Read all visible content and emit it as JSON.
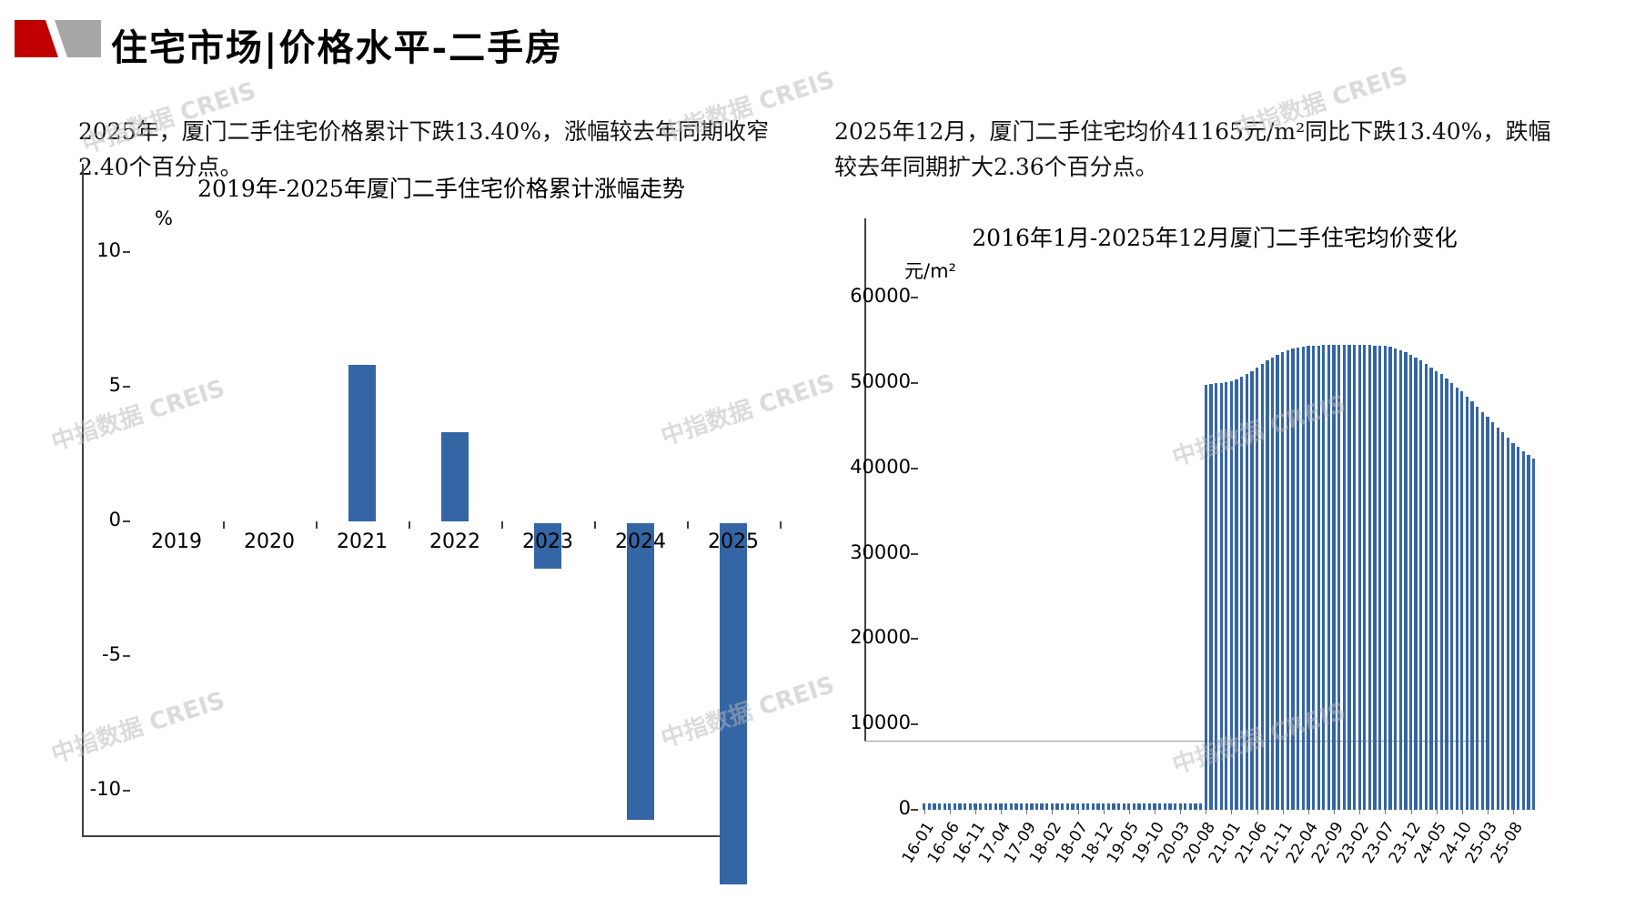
{
  "header": {
    "title": "住宅市场|价格水平-二手房"
  },
  "watermark": {
    "text": "中指数据 CREIS"
  },
  "commentary": {
    "left": "2025年，厦门二手住宅价格累计下跌13.40%，涨幅较去年同期收窄2.40个百分点。",
    "right": "2025年12月，厦门二手住宅均价41165元/m²同比下跌13.40%，跌幅较去年同期扩大2.36个百分点。"
  },
  "colors": {
    "bar": "#3465A4",
    "logo_red": "#C00000",
    "logo_gray": "#A6A6A6",
    "watermark": "#B9B9B9",
    "axis": "#404040"
  },
  "chart_data": [
    {
      "type": "bar",
      "title": "2019年-2025年厦门二手住宅价格累计涨幅走势",
      "unit": "%",
      "categories": [
        "2019",
        "2020",
        "2021",
        "2022",
        "2023",
        "2024",
        "2025"
      ],
      "values": [
        0,
        0,
        5.8,
        3.3,
        -1.7,
        -11.0,
        -13.4
      ],
      "ylim": [
        -14.5,
        10
      ],
      "yticks": [
        10,
        5,
        0,
        -5,
        -10
      ],
      "grid": false,
      "legend": "none"
    },
    {
      "type": "bar",
      "title": "2016年1月-2025年12月厦门二手住宅均价变化",
      "unit": "元/m²",
      "x_start": "2016-01",
      "x_end": "2025-12",
      "x_interval_months": 1,
      "x_tick_labels": [
        "16-01",
        "16-06",
        "16-11",
        "17-04",
        "17-09",
        "18-02",
        "18-07",
        "18-12",
        "19-05",
        "19-10",
        "20-03",
        "20-08",
        "21-01",
        "21-06",
        "21-11",
        "22-04",
        "22-09",
        "23-02",
        "23-07",
        "23-12",
        "24-05",
        "24-10",
        "25-03",
        "25-08"
      ],
      "values": [
        700,
        700,
        700,
        700,
        700,
        700,
        700,
        700,
        700,
        700,
        700,
        700,
        700,
        700,
        700,
        700,
        700,
        700,
        700,
        700,
        700,
        700,
        700,
        700,
        700,
        700,
        700,
        700,
        700,
        700,
        700,
        700,
        700,
        700,
        700,
        700,
        700,
        700,
        700,
        700,
        700,
        700,
        700,
        700,
        700,
        700,
        700,
        700,
        700,
        700,
        700,
        700,
        700,
        700,
        700,
        49800,
        49900,
        50000,
        50000,
        50100,
        50200,
        50400,
        50700,
        51000,
        51400,
        51800,
        52200,
        52600,
        53000,
        53300,
        53600,
        53800,
        54000,
        54100,
        54200,
        54300,
        54400,
        54400,
        54500,
        54500,
        54500,
        54500,
        54500,
        54500,
        54500,
        54500,
        54500,
        54500,
        54400,
        54400,
        54300,
        54200,
        54000,
        53800,
        53600,
        53300,
        53000,
        52600,
        52200,
        51800,
        51400,
        51000,
        50500,
        50000,
        49500,
        49000,
        48400,
        47800,
        47200,
        46600,
        46000,
        45400,
        44800,
        44200,
        43600,
        43000,
        42500,
        42000,
        41600,
        41165
      ],
      "last_value": 41165,
      "ylim": [
        0,
        60000
      ],
      "yticks": [
        60000,
        50000,
        40000,
        30000,
        20000,
        10000,
        0
      ],
      "grid": false,
      "legend": "none"
    }
  ]
}
